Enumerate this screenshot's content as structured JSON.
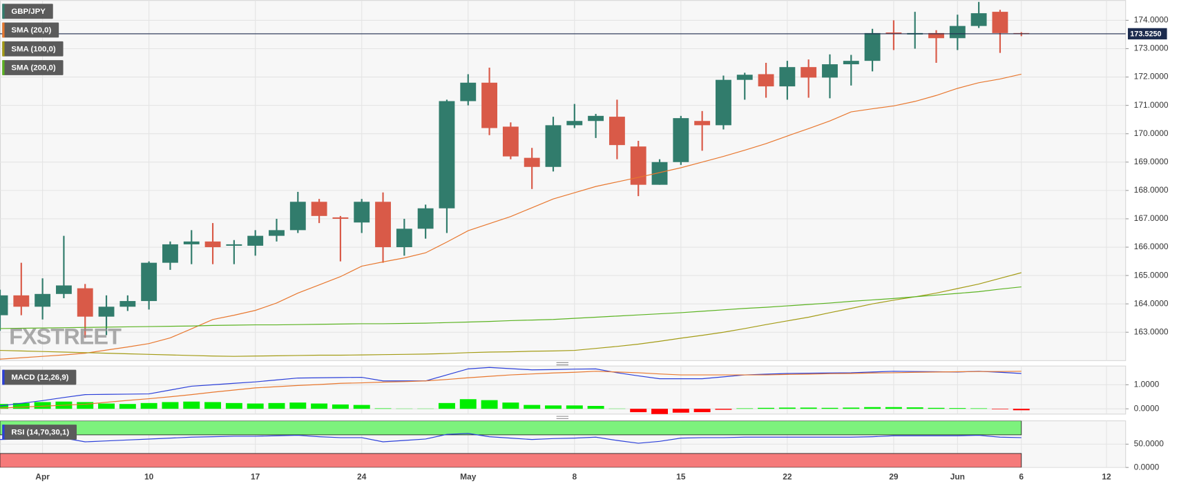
{
  "chart_data": [
    {
      "type": "candlestick",
      "watermark": "FXSTREET",
      "xlim": [
        0,
        52.9
      ],
      "ylim": [
        162,
        174.7
      ],
      "yticks": [
        {
          "value": 163,
          "label": "163.0000"
        },
        {
          "value": 164,
          "label": "164.0000"
        },
        {
          "value": 165,
          "label": "165.0000"
        },
        {
          "value": 166,
          "label": "166.0000"
        },
        {
          "value": 167,
          "label": "167.0000"
        },
        {
          "value": 168,
          "label": "168.0000"
        },
        {
          "value": 169,
          "label": "169.0000"
        },
        {
          "value": 170,
          "label": "170.0000"
        },
        {
          "value": 171,
          "label": "171.0000"
        },
        {
          "value": 172,
          "label": "172.0000"
        },
        {
          "value": 173,
          "label": "173.0000"
        },
        {
          "value": 174,
          "label": "174.0000"
        }
      ],
      "grid": true,
      "up_color": "#317c6c",
      "down_color": "#d95a48",
      "last_price": {
        "value": 173.525,
        "label": "173.5250",
        "color": "#1c2b4e"
      },
      "series": [
        {
          "name": "GBP/JPY",
          "color": "#317c6c",
          "open": [
            163.6,
            164.3,
            163.9,
            164.35,
            164.55,
            163.55,
            163.9,
            164.1,
            165.45,
            166.1,
            166.2,
            166.05,
            166.05,
            166.4,
            166.6,
            167.6,
            167.05,
            166.87,
            167.6,
            166.0,
            166.65,
            167.37,
            171.15,
            171.8,
            170.25,
            169.15,
            168.83,
            170.3,
            170.45,
            170.6,
            169.55,
            168.2,
            169.0,
            170.45,
            170.3,
            171.9,
            172.1,
            171.67,
            172.35,
            171.98,
            172.45,
            172.57,
            173.57,
            173.5,
            173.55,
            173.37,
            173.8,
            174.3,
            173.55
          ],
          "high": [
            164.5,
            165.45,
            164.9,
            166.4,
            164.7,
            164.3,
            164.3,
            165.5,
            166.2,
            166.6,
            166.85,
            166.25,
            166.6,
            167.0,
            167.95,
            167.7,
            167.1,
            167.7,
            167.93,
            167.0,
            167.5,
            171.2,
            172.1,
            172.33,
            170.4,
            169.5,
            170.6,
            171.05,
            170.7,
            171.2,
            169.75,
            169.1,
            170.63,
            170.8,
            172.05,
            172.15,
            172.5,
            172.57,
            172.62,
            172.8,
            172.78,
            173.7,
            174.0,
            174.3,
            173.65,
            174.2,
            174.65,
            174.37,
            173.58
          ],
          "low": [
            163.05,
            163.6,
            163.45,
            164.2,
            162.8,
            162.9,
            163.75,
            163.8,
            165.2,
            165.4,
            165.4,
            165.4,
            165.7,
            166.2,
            166.5,
            166.85,
            165.5,
            166.5,
            165.45,
            165.7,
            166.3,
            166.5,
            171.0,
            169.95,
            169.1,
            168.05,
            168.67,
            170.2,
            169.85,
            169.1,
            167.8,
            168.2,
            168.9,
            169.4,
            170.15,
            171.2,
            171.27,
            171.2,
            171.27,
            171.25,
            171.7,
            172.2,
            172.95,
            173.0,
            172.5,
            172.95,
            173.73,
            172.85,
            173.44
          ],
          "close": [
            164.3,
            163.9,
            164.35,
            164.65,
            163.55,
            163.9,
            164.1,
            165.45,
            166.1,
            166.2,
            166.0,
            166.1,
            166.4,
            166.6,
            167.6,
            167.1,
            167.0,
            167.6,
            166.0,
            166.65,
            167.37,
            171.15,
            171.8,
            170.2,
            169.2,
            168.83,
            170.3,
            170.45,
            170.63,
            169.6,
            168.2,
            169.0,
            170.55,
            170.3,
            171.9,
            172.08,
            171.67,
            172.35,
            171.98,
            172.45,
            172.57,
            173.55,
            173.52,
            173.55,
            173.37,
            173.8,
            174.25,
            173.55,
            173.525
          ]
        },
        {
          "name": "SMA (20,0)",
          "color": "#e8772e",
          "values": [
            162.05,
            162.1,
            162.15,
            162.2,
            162.26,
            162.37,
            162.48,
            162.6,
            162.8,
            163.12,
            163.45,
            163.6,
            163.77,
            164.03,
            164.38,
            164.67,
            164.96,
            165.33,
            165.48,
            165.62,
            165.8,
            166.18,
            166.58,
            166.83,
            167.08,
            167.39,
            167.7,
            167.92,
            168.14,
            168.3,
            168.46,
            168.63,
            168.8,
            169.0,
            169.2,
            169.42,
            169.65,
            169.92,
            170.18,
            170.45,
            170.77,
            170.88,
            170.98,
            171.14,
            171.35,
            171.6,
            171.8,
            171.93,
            172.1
          ]
        },
        {
          "name": "SMA (100,0)",
          "color": "#a39b14",
          "values": [
            162.36,
            162.34,
            162.32,
            162.3,
            162.28,
            162.26,
            162.24,
            162.22,
            162.2,
            162.18,
            162.16,
            162.15,
            162.16,
            162.17,
            162.18,
            162.19,
            162.19,
            162.2,
            162.21,
            162.22,
            162.23,
            162.25,
            162.28,
            162.3,
            162.31,
            162.33,
            162.34,
            162.36,
            162.43,
            162.5,
            162.58,
            162.68,
            162.79,
            162.89,
            163.0,
            163.13,
            163.27,
            163.4,
            163.53,
            163.69,
            163.84,
            164.0,
            164.13,
            164.25,
            164.38,
            164.54,
            164.7,
            164.9,
            165.1
          ]
        },
        {
          "name": "SMA (200,0)",
          "color": "#5bb321",
          "values": [
            163.13,
            163.14,
            163.15,
            163.16,
            163.17,
            163.18,
            163.19,
            163.2,
            163.21,
            163.22,
            163.24,
            163.25,
            163.26,
            163.26,
            163.27,
            163.28,
            163.29,
            163.3,
            163.3,
            163.31,
            163.32,
            163.34,
            163.36,
            163.38,
            163.41,
            163.43,
            163.45,
            163.49,
            163.53,
            163.57,
            163.61,
            163.65,
            163.69,
            163.74,
            163.79,
            163.84,
            163.88,
            163.93,
            163.98,
            164.03,
            164.09,
            164.14,
            164.19,
            164.25,
            164.31,
            164.37,
            164.43,
            164.52,
            164.6
          ]
        }
      ]
    },
    {
      "type": "macd",
      "title": "MACD (12,26,9)",
      "title_color": "#2b3fd9",
      "xlim": [
        0,
        52.9
      ],
      "ylim": [
        -0.22,
        1.78
      ],
      "yticks": [
        {
          "value": 0,
          "label": "0.0000"
        },
        {
          "value": 1,
          "label": "1.0000"
        }
      ],
      "grid": true,
      "histogram": {
        "up_color": "#00ee00",
        "down_color": "#ff0000",
        "values": [
          0.2,
          0.24,
          0.28,
          0.3,
          0.28,
          0.22,
          0.2,
          0.24,
          0.28,
          0.3,
          0.28,
          0.24,
          0.22,
          0.24,
          0.26,
          0.22,
          0.18,
          0.16,
          0.02,
          0.01,
          0.01,
          0.24,
          0.4,
          0.36,
          0.26,
          0.16,
          0.14,
          0.14,
          0.12,
          0.01,
          -0.14,
          -0.22,
          -0.16,
          -0.14,
          -0.04,
          0.02,
          0.04,
          0.05,
          0.05,
          0.04,
          0.05,
          0.07,
          0.07,
          0.06,
          0.04,
          0.03,
          0.02,
          -0.02,
          -0.06
        ]
      },
      "series": [
        {
          "color": "#2b3fd9",
          "values": [
            0.12,
            0.23,
            0.34,
            0.47,
            0.59,
            0.6,
            0.61,
            0.62,
            0.78,
            0.94,
            1.0,
            1.06,
            1.12,
            1.2,
            1.28,
            1.29,
            1.3,
            1.31,
            1.16,
            1.16,
            1.16,
            1.41,
            1.66,
            1.72,
            1.67,
            1.62,
            1.63,
            1.65,
            1.66,
            1.5,
            1.37,
            1.25,
            1.25,
            1.25,
            1.33,
            1.41,
            1.44,
            1.47,
            1.48,
            1.49,
            1.5,
            1.53,
            1.56,
            1.55,
            1.54,
            1.53,
            1.56,
            1.52,
            1.47
          ]
        },
        {
          "color": "#e8772e",
          "values": [
            0.03,
            0.07,
            0.11,
            0.15,
            0.19,
            0.27,
            0.35,
            0.42,
            0.5,
            0.59,
            0.69,
            0.78,
            0.87,
            0.92,
            0.97,
            1.01,
            1.06,
            1.08,
            1.11,
            1.13,
            1.16,
            1.22,
            1.29,
            1.35,
            1.41,
            1.45,
            1.49,
            1.52,
            1.56,
            1.53,
            1.5,
            1.45,
            1.41,
            1.41,
            1.41,
            1.41,
            1.41,
            1.43,
            1.44,
            1.46,
            1.47,
            1.49,
            1.5,
            1.52,
            1.53,
            1.54,
            1.55,
            1.55,
            1.56
          ]
        }
      ]
    },
    {
      "type": "line",
      "title": "RSI (14,70,30,1)",
      "title_color": "#2b3fd9",
      "xlim": [
        0,
        52.9
      ],
      "ylim": [
        0,
        100
      ],
      "yticks": [
        {
          "value": 0,
          "label": "0.0000"
        },
        {
          "value": 50,
          "label": "50.0000"
        }
      ],
      "grid": true,
      "bands": [
        {
          "from": 70,
          "to": 100,
          "color": "#7df27d"
        },
        {
          "from": 0,
          "to": 30,
          "color": "#f57a7a"
        }
      ],
      "series": [
        {
          "color": "#2b3fd9",
          "values": [
            60,
            61,
            62,
            63,
            55,
            57,
            59,
            61,
            63,
            65,
            66,
            67,
            67,
            68,
            69,
            66,
            64,
            64,
            55,
            58,
            61,
            71,
            73,
            66,
            63,
            60,
            62,
            63,
            65,
            58,
            52,
            56,
            63,
            64,
            64,
            65,
            65,
            65,
            65,
            65,
            65,
            66,
            68,
            68,
            68,
            68,
            69,
            65,
            64
          ]
        }
      ],
      "xticks": [
        {
          "value": 2,
          "label": "Apr"
        },
        {
          "value": 7,
          "label": "10"
        },
        {
          "value": 12,
          "label": "17"
        },
        {
          "value": 17,
          "label": "24"
        },
        {
          "value": 22,
          "label": "May"
        },
        {
          "value": 27,
          "label": "8"
        },
        {
          "value": 32,
          "label": "15"
        },
        {
          "value": 37,
          "label": "22"
        },
        {
          "value": 42,
          "label": "29"
        },
        {
          "value": 45,
          "label": "Jun"
        },
        {
          "value": 48,
          "label": "6"
        },
        {
          "value": 52,
          "label": "12"
        }
      ]
    }
  ]
}
